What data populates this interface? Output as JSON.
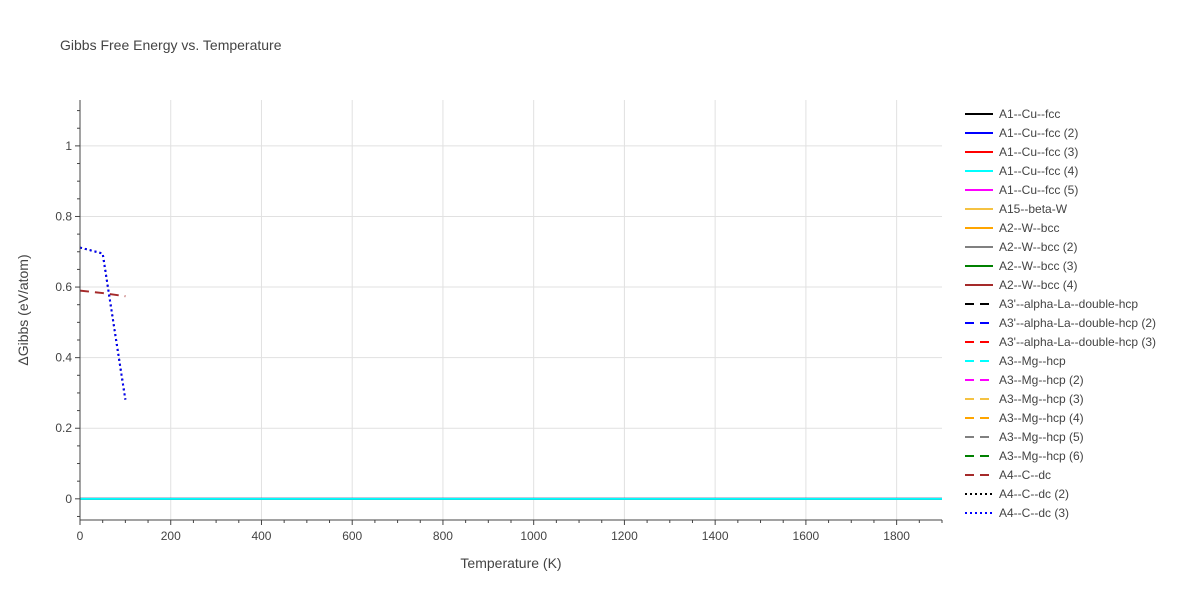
{
  "chart_data": {
    "type": "line",
    "title": "Gibbs Free Energy vs. Temperature",
    "xlabel": "Temperature (K)",
    "ylabel": "ΔGibbs (eV/atom)",
    "xlim": [
      0,
      1900
    ],
    "ylim": [
      -0.06,
      1.13
    ],
    "x_ticks": [
      0,
      200,
      400,
      600,
      800,
      1000,
      1200,
      1400,
      1600,
      1800
    ],
    "y_ticks": [
      0,
      0.2,
      0.4,
      0.6,
      0.8,
      1
    ],
    "x_tick_labels": [
      "0",
      "200",
      "400",
      "600",
      "800",
      "1000",
      "1200",
      "1400",
      "1600",
      "1800"
    ],
    "y_tick_labels": [
      "0",
      "0.2",
      "0.4",
      "0.6",
      "0.8",
      "1"
    ],
    "grid": true,
    "legend_position": "right",
    "series": [
      {
        "name": "A1--Cu--fcc",
        "color": "#000000",
        "dash": "solid",
        "x": [
          0,
          1900
        ],
        "y": [
          0,
          0
        ]
      },
      {
        "name": "A1--Cu--fcc (2)",
        "color": "#0000ff",
        "dash": "solid",
        "x": [
          0,
          1900
        ],
        "y": [
          0,
          0
        ]
      },
      {
        "name": "A1--Cu--fcc (3)",
        "color": "#ff0000",
        "dash": "solid",
        "x": [
          0,
          1900
        ],
        "y": [
          0,
          0
        ]
      },
      {
        "name": "A1--Cu--fcc (4)",
        "color": "#00ffff",
        "dash": "solid",
        "x": [
          0,
          1900
        ],
        "y": [
          0,
          0
        ]
      },
      {
        "name": "A1--Cu--fcc (5)",
        "color": "#ff00ff",
        "dash": "solid",
        "x": [],
        "y": []
      },
      {
        "name": "A15--beta-W",
        "color": "#f5c242",
        "dash": "solid",
        "x": [],
        "y": []
      },
      {
        "name": "A2--W--bcc",
        "color": "#ffa500",
        "dash": "solid",
        "x": [],
        "y": []
      },
      {
        "name": "A2--W--bcc (2)",
        "color": "#808080",
        "dash": "solid",
        "x": [],
        "y": []
      },
      {
        "name": "A2--W--bcc (3)",
        "color": "#008000",
        "dash": "solid",
        "x": [],
        "y": []
      },
      {
        "name": "A2--W--bcc (4)",
        "color": "#a52a2a",
        "dash": "solid",
        "x": [],
        "y": []
      },
      {
        "name": "A3'--alpha-La--double-hcp",
        "color": "#000000",
        "dash": "dash",
        "x": [],
        "y": []
      },
      {
        "name": "A3'--alpha-La--double-hcp (2)",
        "color": "#0000ff",
        "dash": "dash",
        "x": [],
        "y": []
      },
      {
        "name": "A3'--alpha-La--double-hcp (3)",
        "color": "#ff0000",
        "dash": "dash",
        "x": [],
        "y": []
      },
      {
        "name": "A3--Mg--hcp",
        "color": "#00ffff",
        "dash": "dash",
        "x": [],
        "y": []
      },
      {
        "name": "A3--Mg--hcp (2)",
        "color": "#ff00ff",
        "dash": "dash",
        "x": [],
        "y": []
      },
      {
        "name": "A3--Mg--hcp (3)",
        "color": "#f5c242",
        "dash": "dash",
        "x": [],
        "y": []
      },
      {
        "name": "A3--Mg--hcp (4)",
        "color": "#ffa500",
        "dash": "dash",
        "x": [],
        "y": []
      },
      {
        "name": "A3--Mg--hcp (5)",
        "color": "#808080",
        "dash": "dash",
        "x": [],
        "y": []
      },
      {
        "name": "A3--Mg--hcp (6)",
        "color": "#008000",
        "dash": "dash",
        "x": [],
        "y": []
      },
      {
        "name": "A4--C--dc",
        "color": "#a52a2a",
        "dash": "dash",
        "x": [
          0,
          50,
          100
        ],
        "y": [
          0.59,
          0.583,
          0.574
        ]
      },
      {
        "name": "A4--C--dc (2)",
        "color": "#000000",
        "dash": "dot",
        "x": [
          0,
          50,
          100
        ],
        "y": [
          0.712,
          0.695,
          0.281
        ]
      },
      {
        "name": "A4--C--dc (3)",
        "color": "#0000ff",
        "dash": "dot",
        "x": [
          0,
          50,
          100
        ],
        "y": [
          0.712,
          0.695,
          0.281
        ]
      }
    ]
  }
}
